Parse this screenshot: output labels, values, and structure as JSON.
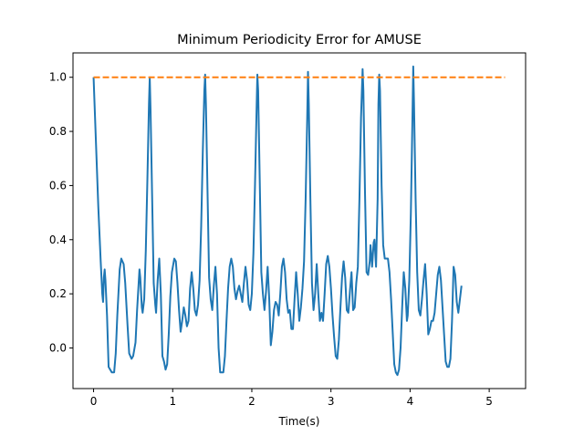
{
  "chart_data": {
    "type": "line",
    "title": "Minimum Periodicity Error for AMUSE",
    "xlabel": "Time(s)",
    "ylabel": "",
    "xlim": [
      -0.26,
      5.46
    ],
    "ylim": [
      -0.15,
      1.09
    ],
    "xticks": [
      0,
      1,
      2,
      3,
      4,
      5
    ],
    "yticks": [
      0.0,
      0.2,
      0.4,
      0.6,
      0.8,
      1.0
    ],
    "xtick_labels": [
      "0",
      "1",
      "2",
      "3",
      "4",
      "5"
    ],
    "ytick_labels": [
      "0.0",
      "0.2",
      "0.4",
      "0.6",
      "0.8",
      "1.0"
    ],
    "grid": false,
    "legend": "none",
    "series": [
      {
        "color": "#1f77b4",
        "style": "solid",
        "points": [
          [
            0.0,
            1.0
          ],
          [
            0.03,
            0.76
          ],
          [
            0.06,
            0.52
          ],
          [
            0.09,
            0.32
          ],
          [
            0.11,
            0.2
          ],
          [
            0.12,
            0.17
          ],
          [
            0.13,
            0.26
          ],
          [
            0.14,
            0.29
          ],
          [
            0.15,
            0.25
          ],
          [
            0.17,
            0.12
          ],
          [
            0.19,
            -0.07
          ],
          [
            0.21,
            -0.08
          ],
          [
            0.23,
            -0.09
          ],
          [
            0.26,
            -0.09
          ],
          [
            0.28,
            -0.02
          ],
          [
            0.3,
            0.12
          ],
          [
            0.33,
            0.29
          ],
          [
            0.35,
            0.33
          ],
          [
            0.38,
            0.31
          ],
          [
            0.4,
            0.24
          ],
          [
            0.43,
            0.08
          ],
          [
            0.45,
            -0.02
          ],
          [
            0.48,
            -0.04
          ],
          [
            0.5,
            -0.03
          ],
          [
            0.53,
            0.02
          ],
          [
            0.55,
            0.14
          ],
          [
            0.57,
            0.24
          ],
          [
            0.58,
            0.29
          ],
          [
            0.59,
            0.26
          ],
          [
            0.61,
            0.15
          ],
          [
            0.62,
            0.13
          ],
          [
            0.64,
            0.18
          ],
          [
            0.66,
            0.36
          ],
          [
            0.68,
            0.62
          ],
          [
            0.7,
            0.9
          ],
          [
            0.71,
            1.0
          ],
          [
            0.72,
            0.88
          ],
          [
            0.74,
            0.56
          ],
          [
            0.76,
            0.24
          ],
          [
            0.78,
            0.16
          ],
          [
            0.79,
            0.13
          ],
          [
            0.81,
            0.25
          ],
          [
            0.83,
            0.33
          ],
          [
            0.85,
            0.2
          ],
          [
            0.87,
            -0.03
          ],
          [
            0.89,
            -0.05
          ],
          [
            0.91,
            -0.08
          ],
          [
            0.93,
            -0.06
          ],
          [
            0.95,
            0.05
          ],
          [
            0.97,
            0.19
          ],
          [
            0.99,
            0.28
          ],
          [
            1.02,
            0.33
          ],
          [
            1.04,
            0.32
          ],
          [
            1.06,
            0.24
          ],
          [
            1.08,
            0.14
          ],
          [
            1.1,
            0.06
          ],
          [
            1.12,
            0.1
          ],
          [
            1.14,
            0.15
          ],
          [
            1.16,
            0.12
          ],
          [
            1.18,
            0.08
          ],
          [
            1.2,
            0.1
          ],
          [
            1.22,
            0.22
          ],
          [
            1.24,
            0.28
          ],
          [
            1.26,
            0.22
          ],
          [
            1.28,
            0.14
          ],
          [
            1.3,
            0.12
          ],
          [
            1.32,
            0.16
          ],
          [
            1.34,
            0.25
          ],
          [
            1.36,
            0.45
          ],
          [
            1.38,
            0.72
          ],
          [
            1.4,
            0.95
          ],
          [
            1.41,
            1.01
          ],
          [
            1.42,
            0.9
          ],
          [
            1.44,
            0.58
          ],
          [
            1.46,
            0.26
          ],
          [
            1.48,
            0.18
          ],
          [
            1.5,
            0.14
          ],
          [
            1.52,
            0.23
          ],
          [
            1.54,
            0.3
          ],
          [
            1.56,
            0.2
          ],
          [
            1.58,
            0.0
          ],
          [
            1.6,
            -0.09
          ],
          [
            1.62,
            -0.09
          ],
          [
            1.64,
            -0.09
          ],
          [
            1.66,
            -0.03
          ],
          [
            1.68,
            0.1
          ],
          [
            1.7,
            0.22
          ],
          [
            1.72,
            0.3
          ],
          [
            1.74,
            0.33
          ],
          [
            1.76,
            0.3
          ],
          [
            1.78,
            0.22
          ],
          [
            1.8,
            0.18
          ],
          [
            1.82,
            0.21
          ],
          [
            1.84,
            0.23
          ],
          [
            1.86,
            0.2
          ],
          [
            1.88,
            0.17
          ],
          [
            1.9,
            0.24
          ],
          [
            1.92,
            0.3
          ],
          [
            1.94,
            0.25
          ],
          [
            1.96,
            0.16
          ],
          [
            1.98,
            0.14
          ],
          [
            2.0,
            0.2
          ],
          [
            2.02,
            0.35
          ],
          [
            2.04,
            0.6
          ],
          [
            2.06,
            0.88
          ],
          [
            2.07,
            1.01
          ],
          [
            2.08,
            0.95
          ],
          [
            2.1,
            0.62
          ],
          [
            2.12,
            0.28
          ],
          [
            2.14,
            0.2
          ],
          [
            2.16,
            0.14
          ],
          [
            2.18,
            0.21
          ],
          [
            2.2,
            0.3
          ],
          [
            2.22,
            0.18
          ],
          [
            2.24,
            0.01
          ],
          [
            2.26,
            0.06
          ],
          [
            2.28,
            0.14
          ],
          [
            2.3,
            0.17
          ],
          [
            2.32,
            0.16
          ],
          [
            2.34,
            0.12
          ],
          [
            2.36,
            0.2
          ],
          [
            2.38,
            0.3
          ],
          [
            2.4,
            0.33
          ],
          [
            2.42,
            0.28
          ],
          [
            2.44,
            0.18
          ],
          [
            2.46,
            0.13
          ],
          [
            2.48,
            0.14
          ],
          [
            2.5,
            0.07
          ],
          [
            2.52,
            0.07
          ],
          [
            2.54,
            0.18
          ],
          [
            2.56,
            0.28
          ],
          [
            2.58,
            0.2
          ],
          [
            2.6,
            0.1
          ],
          [
            2.62,
            0.15
          ],
          [
            2.64,
            0.22
          ],
          [
            2.66,
            0.32
          ],
          [
            2.68,
            0.55
          ],
          [
            2.7,
            0.85
          ],
          [
            2.71,
            1.02
          ],
          [
            2.72,
            0.9
          ],
          [
            2.74,
            0.55
          ],
          [
            2.76,
            0.24
          ],
          [
            2.78,
            0.14
          ],
          [
            2.8,
            0.2
          ],
          [
            2.82,
            0.31
          ],
          [
            2.84,
            0.2
          ],
          [
            2.86,
            0.1
          ],
          [
            2.88,
            0.13
          ],
          [
            2.9,
            0.1
          ],
          [
            2.92,
            0.2
          ],
          [
            2.94,
            0.31
          ],
          [
            2.96,
            0.34
          ],
          [
            2.98,
            0.3
          ],
          [
            3.0,
            0.22
          ],
          [
            3.02,
            0.12
          ],
          [
            3.04,
            0.04
          ],
          [
            3.06,
            -0.03
          ],
          [
            3.08,
            -0.04
          ],
          [
            3.1,
            0.03
          ],
          [
            3.12,
            0.15
          ],
          [
            3.14,
            0.26
          ],
          [
            3.16,
            0.32
          ],
          [
            3.18,
            0.26
          ],
          [
            3.2,
            0.14
          ],
          [
            3.22,
            0.13
          ],
          [
            3.24,
            0.21
          ],
          [
            3.26,
            0.28
          ],
          [
            3.28,
            0.14
          ],
          [
            3.3,
            0.15
          ],
          [
            3.32,
            0.24
          ],
          [
            3.34,
            0.3
          ],
          [
            3.36,
            0.55
          ],
          [
            3.38,
            0.85
          ],
          [
            3.4,
            1.03
          ],
          [
            3.41,
            0.95
          ],
          [
            3.43,
            0.58
          ],
          [
            3.45,
            0.28
          ],
          [
            3.47,
            0.27
          ],
          [
            3.49,
            0.32
          ],
          [
            3.5,
            0.38
          ],
          [
            3.52,
            0.3
          ],
          [
            3.54,
            0.39
          ],
          [
            3.55,
            0.4
          ],
          [
            3.57,
            0.3
          ],
          [
            3.59,
            0.55
          ],
          [
            3.6,
            0.9
          ],
          [
            3.61,
            1.01
          ],
          [
            3.62,
            0.95
          ],
          [
            3.64,
            0.6
          ],
          [
            3.66,
            0.38
          ],
          [
            3.68,
            0.33
          ],
          [
            3.7,
            0.33
          ],
          [
            3.72,
            0.33
          ],
          [
            3.74,
            0.28
          ],
          [
            3.76,
            0.18
          ],
          [
            3.78,
            0.06
          ],
          [
            3.8,
            -0.06
          ],
          [
            3.82,
            -0.09
          ],
          [
            3.84,
            -0.1
          ],
          [
            3.86,
            -0.08
          ],
          [
            3.88,
            0.0
          ],
          [
            3.9,
            0.15
          ],
          [
            3.92,
            0.28
          ],
          [
            3.94,
            0.22
          ],
          [
            3.96,
            0.1
          ],
          [
            3.97,
            0.12
          ],
          [
            3.99,
            0.25
          ],
          [
            4.01,
            0.5
          ],
          [
            4.03,
            0.85
          ],
          [
            4.04,
            1.04
          ],
          [
            4.05,
            0.9
          ],
          [
            4.07,
            0.55
          ],
          [
            4.09,
            0.28
          ],
          [
            4.11,
            0.14
          ],
          [
            4.13,
            0.12
          ],
          [
            4.15,
            0.18
          ],
          [
            4.17,
            0.25
          ],
          [
            4.19,
            0.31
          ],
          [
            4.21,
            0.2
          ],
          [
            4.23,
            0.05
          ],
          [
            4.25,
            0.07
          ],
          [
            4.27,
            0.1
          ],
          [
            4.29,
            0.1
          ],
          [
            4.31,
            0.13
          ],
          [
            4.33,
            0.2
          ],
          [
            4.35,
            0.27
          ],
          [
            4.37,
            0.3
          ],
          [
            4.39,
            0.25
          ],
          [
            4.41,
            0.15
          ],
          [
            4.43,
            0.05
          ],
          [
            4.45,
            -0.05
          ],
          [
            4.47,
            -0.07
          ],
          [
            4.49,
            -0.07
          ],
          [
            4.51,
            -0.04
          ],
          [
            4.53,
            0.1
          ],
          [
            4.55,
            0.3
          ],
          [
            4.57,
            0.27
          ],
          [
            4.59,
            0.17
          ],
          [
            4.61,
            0.13
          ],
          [
            4.63,
            0.18
          ],
          [
            4.65,
            0.23
          ]
        ]
      },
      {
        "color": "#ff7f0e",
        "style": "dashed",
        "points": [
          [
            0.0,
            1.0
          ],
          [
            5.2,
            1.0
          ]
        ]
      }
    ]
  }
}
